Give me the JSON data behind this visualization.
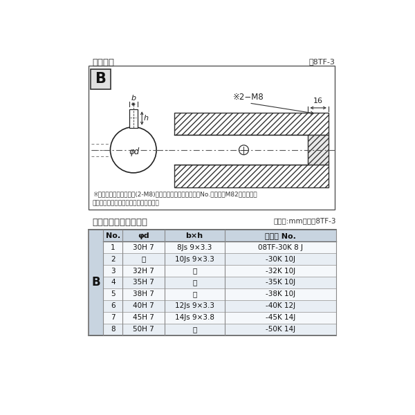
{
  "title_top": "軸穴形状",
  "title_top_right": "囸8TF-3",
  "diagram_note1": "※セットボルト用タップ(2-M8)が必要な場合は右記コードNo.の末尾にM82を付ける。",
  "diagram_note2": "（セットボルトは付属されています。）",
  "table_title": "軸穴形状コード一覧表",
  "table_unit": "（単位:mm）　表8TF-3",
  "col_headers": [
    "No.",
    "φd",
    "b×h",
    "コード No."
  ],
  "side_label": "B",
  "rows": [
    [
      "1",
      "30H 7",
      "8Js 9×3.3",
      "08TF-30K 8 J"
    ],
    [
      "2",
      "「",
      "10Js 9×3.3",
      "-30K 10J"
    ],
    [
      "3",
      "32H 7",
      "「",
      "-32K 10J"
    ],
    [
      "4",
      "35H 7",
      "「",
      "-35K 10J"
    ],
    [
      "5",
      "38H 7",
      "「",
      "-38K 10J"
    ],
    [
      "6",
      "40H 7",
      "12Js 9×3.3",
      "-40K 12J"
    ],
    [
      "7",
      "45H 7",
      "14Js 9×3.8",
      "-45K 14J"
    ],
    [
      "8",
      "50H 7",
      "「",
      "-50K 14J"
    ]
  ],
  "ditto": "「",
  "bg_color": "#ffffff",
  "table_border_color": "#888888",
  "text_color": "#333333",
  "header_bg": "#c8d4e0",
  "row_bg_odd": "#e8eef4",
  "row_bg_even": "#f5f8fb",
  "b_col_bg": "#c8d4e0",
  "diagram_border": "#555555"
}
